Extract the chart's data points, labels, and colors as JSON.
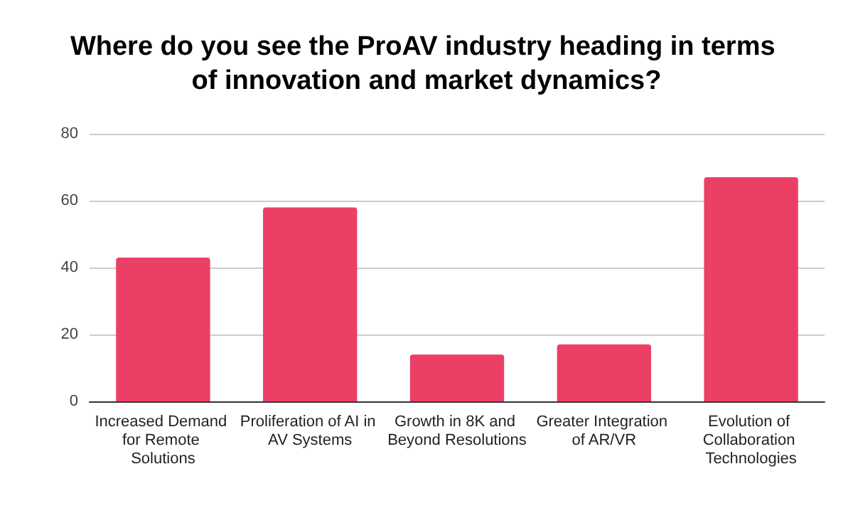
{
  "chart_data": {
    "type": "bar",
    "title": "Where do you see the ProAV industry heading in terms of innovation and market dynamics?",
    "categories": [
      "Increased Demand for Remote Solutions",
      "Proliferation of AI in AV Systems",
      "Growth in 8K and Beyond Resolutions",
      "Greater Integration of AR/VR",
      "Evolution of Collaboration Technologies"
    ],
    "values": [
      43,
      58,
      14,
      17,
      67
    ],
    "color": "#ec3f66",
    "ylim": [
      0,
      80
    ],
    "yticks": [
      0,
      20,
      40,
      60,
      80
    ],
    "grid": "y"
  }
}
